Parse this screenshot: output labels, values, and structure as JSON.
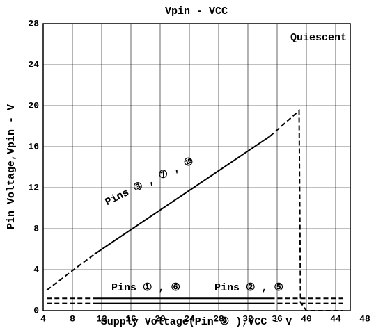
{
  "chart_data": {
    "type": "line",
    "title": "Vpin - VCC",
    "x_label": "Supply Voltage(Pin ⑨ ),VCC - V",
    "y_label": "Pin Voltage,Vpin - V",
    "annotations": [
      "Quiescent",
      "Pins ③ , ⑦ , ⑩",
      "Pins ① , ⑥",
      "Pins ② , ⑤"
    ],
    "xlim": [
      4,
      46
    ],
    "xticks": [
      4,
      8,
      12,
      16,
      20,
      24,
      28,
      32,
      36,
      40,
      44,
      48
    ],
    "ylim": [
      0,
      28
    ],
    "yticks": [
      0,
      4,
      8,
      12,
      16,
      20,
      24,
      28
    ],
    "grid": true,
    "series": [
      {
        "color": "#000000",
        "dashed": true,
        "x": [
          4.5,
          8,
          11
        ],
        "values": [
          2,
          3.9,
          5.5
        ]
      },
      {
        "color": "#000000",
        "dashed": false,
        "x": [
          11,
          35
        ],
        "values": [
          5.5,
          17
        ]
      },
      {
        "color": "#000000",
        "dashed": true,
        "x": [
          35,
          39,
          39.2,
          40,
          45
        ],
        "values": [
          17,
          19.5,
          0.8,
          0,
          0
        ]
      },
      {
        "color": "#000000",
        "dashed": true,
        "x": [
          4.5,
          11
        ],
        "values": [
          1.2,
          1.2
        ]
      },
      {
        "color": "#000000",
        "dashed": false,
        "x": [
          11,
          35
        ],
        "values": [
          1.2,
          1.2
        ]
      },
      {
        "color": "#000000",
        "dashed": true,
        "x": [
          35,
          45
        ],
        "values": [
          1.2,
          1.2
        ]
      },
      {
        "color": "#000000",
        "dashed": true,
        "x": [
          4.5,
          11
        ],
        "values": [
          0.7,
          0.7
        ]
      },
      {
        "color": "#000000",
        "dashed": false,
        "x": [
          11,
          35
        ],
        "values": [
          0.7,
          0.7
        ]
      },
      {
        "color": "#000000",
        "dashed": true,
        "x": [
          35,
          45
        ],
        "values": [
          0.7,
          0.7
        ]
      }
    ]
  }
}
